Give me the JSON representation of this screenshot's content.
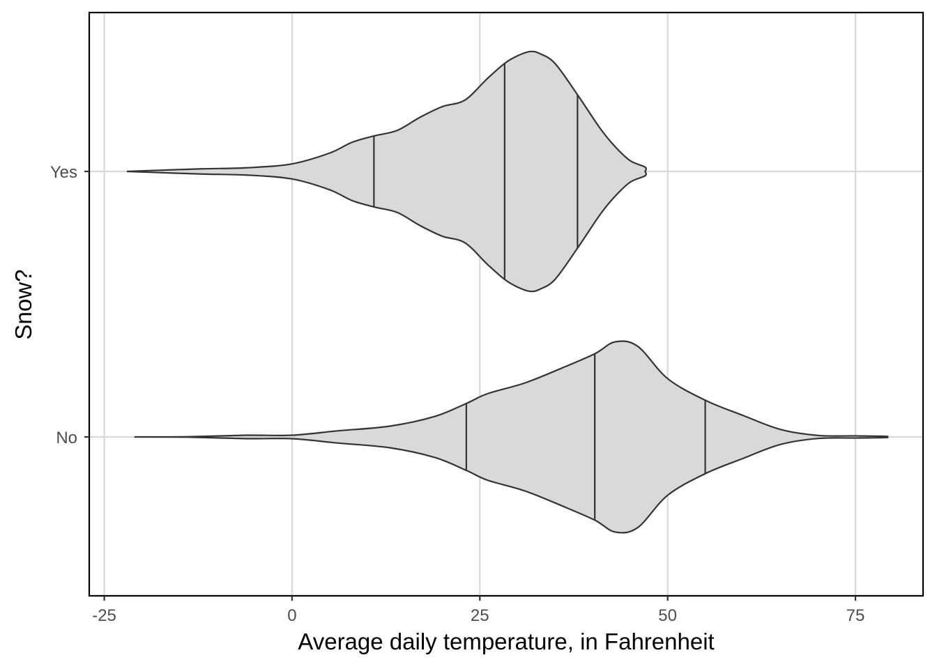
{
  "chart_data": {
    "type": "violin",
    "orientation": "horizontal",
    "xlabel": "Average daily temperature, in Fahrenheit",
    "ylabel": "Snow?",
    "xlim": [
      -27,
      84
    ],
    "x_ticks": [
      -25,
      0,
      25,
      50,
      75
    ],
    "x_tick_labels": [
      "-25",
      "0",
      "25",
      "50",
      "75"
    ],
    "grid": true,
    "categories": [
      "No",
      "Yes"
    ],
    "colors": {
      "fill": "#d9d9d9",
      "outline": "#333333",
      "grid": "#d9d9d9"
    },
    "series": [
      {
        "category": "Yes",
        "quantiles": [
          10.9,
          28.3,
          38.0
        ],
        "density_profile": [
          [
            -22,
            0.0
          ],
          [
            -18,
            0.005
          ],
          [
            -12,
            0.012
          ],
          [
            -6,
            0.017
          ],
          [
            0,
            0.035
          ],
          [
            5,
            0.085
          ],
          [
            8,
            0.135
          ],
          [
            11,
            0.165
          ],
          [
            14,
            0.19
          ],
          [
            17,
            0.25
          ],
          [
            20,
            0.3
          ],
          [
            23,
            0.33
          ],
          [
            26,
            0.43
          ],
          [
            28.3,
            0.5
          ],
          [
            30,
            0.535
          ],
          [
            31.7,
            0.555
          ],
          [
            33,
            0.545
          ],
          [
            35,
            0.5
          ],
          [
            38,
            0.355
          ],
          [
            41,
            0.2
          ],
          [
            43,
            0.115
          ],
          [
            45,
            0.05
          ],
          [
            47,
            0.02
          ],
          [
            47,
            0.0
          ]
        ]
      },
      {
        "category": "No",
        "quantiles": [
          23.2,
          40.3,
          55.0
        ],
        "density_profile": [
          [
            -21,
            0.0
          ],
          [
            -14,
            0.001
          ],
          [
            -6,
            0.008
          ],
          [
            0,
            0.008
          ],
          [
            6,
            0.028
          ],
          [
            13,
            0.05
          ],
          [
            19,
            0.095
          ],
          [
            23.2,
            0.155
          ],
          [
            26,
            0.2
          ],
          [
            31,
            0.25
          ],
          [
            36,
            0.32
          ],
          [
            40.3,
            0.385
          ],
          [
            43,
            0.44
          ],
          [
            46,
            0.42
          ],
          [
            50,
            0.27
          ],
          [
            55,
            0.17
          ],
          [
            60,
            0.1
          ],
          [
            65,
            0.035
          ],
          [
            70,
            0.007
          ],
          [
            75,
            0.005
          ],
          [
            79,
            0.003
          ],
          [
            79,
            0.0
          ]
        ]
      }
    ]
  }
}
